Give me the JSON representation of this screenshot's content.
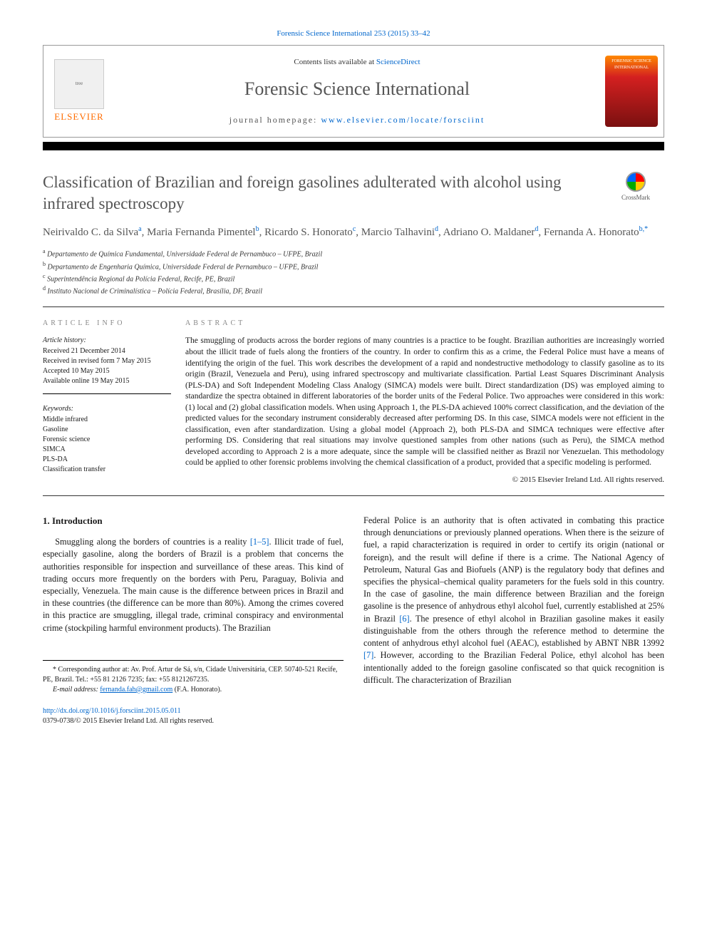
{
  "header": {
    "citation": "Forensic Science International 253 (2015) 33–42",
    "contents_prefix": "Contents lists available at ",
    "contents_link": "ScienceDirect",
    "journal_name": "Forensic Science International",
    "homepage_prefix": "journal homepage: ",
    "homepage_link": "www.elsevier.com/locate/forsciint",
    "publisher": "ELSEVIER",
    "cover_label": "FORENSIC SCIENCE INTERNATIONAL"
  },
  "crossmark": {
    "label": "CrossMark"
  },
  "article": {
    "title": "Classification of Brazilian and foreign gasolines adulterated with alcohol using infrared spectroscopy",
    "authors_html": "Neirivaldo C. da Silva<sup>a</sup>, Maria Fernanda Pimentel<sup>b</sup>, Ricardo S. Honorato<sup>c</sup>, Marcio Talhavini<sup>d</sup>, Adriano O. Maldaner<sup>d</sup>, Fernanda A. Honorato<sup>b,*</sup>",
    "affiliations": [
      {
        "sup": "a",
        "text": "Departamento de Química Fundamental, Universidade Federal de Pernambuco – UFPE, Brazil"
      },
      {
        "sup": "b",
        "text": "Departamento de Engenharia Química, Universidade Federal de Pernambuco – UFPE, Brazil"
      },
      {
        "sup": "c",
        "text": "Superintendência Regional da Polícia Federal, Recife, PE, Brazil"
      },
      {
        "sup": "d",
        "text": "Instituto Nacional de Criminalística – Polícia Federal, Brasília, DF, Brazil"
      }
    ]
  },
  "info": {
    "heading": "ARTICLE INFO",
    "history_label": "Article history:",
    "history": [
      "Received 21 December 2014",
      "Received in revised form 7 May 2015",
      "Accepted 10 May 2015",
      "Available online 19 May 2015"
    ],
    "keywords_label": "Keywords:",
    "keywords": [
      "Middle infrared",
      "Gasoline",
      "Forensic science",
      "SIMCA",
      "PLS-DA",
      "Classification transfer"
    ]
  },
  "abstract": {
    "heading": "ABSTRACT",
    "text": "The smuggling of products across the border regions of many countries is a practice to be fought. Brazilian authorities are increasingly worried about the illicit trade of fuels along the frontiers of the country. In order to confirm this as a crime, the Federal Police must have a means of identifying the origin of the fuel. This work describes the development of a rapid and nondestructive methodology to classify gasoline as to its origin (Brazil, Venezuela and Peru), using infrared spectroscopy and multivariate classification. Partial Least Squares Discriminant Analysis (PLS-DA) and Soft Independent Modeling Class Analogy (SIMCA) models were built. Direct standardization (DS) was employed aiming to standardize the spectra obtained in different laboratories of the border units of the Federal Police. Two approaches were considered in this work: (1) local and (2) global classification models. When using Approach 1, the PLS-DA achieved 100% correct classification, and the deviation of the predicted values for the secondary instrument considerably decreased after performing DS. In this case, SIMCA models were not efficient in the classification, even after standardization. Using a global model (Approach 2), both PLS-DA and SIMCA techniques were effective after performing DS. Considering that real situations may involve questioned samples from other nations (such as Peru), the SIMCA method developed according to Approach 2 is a more adequate, since the sample will be classified neither as Brazil nor Venezuelan. This methodology could be applied to other forensic problems involving the chemical classification of a product, provided that a specific modeling is performed.",
    "copyright": "© 2015 Elsevier Ireland Ltd. All rights reserved."
  },
  "body": {
    "section_heading": "1. Introduction",
    "col1_para1_pre": "Smuggling along the borders of countries is a reality ",
    "col1_ref1": "[1–5]",
    "col1_para1_post": ". Illicit trade of fuel, especially gasoline, along the borders of Brazil is a problem that concerns the authorities responsible for inspection and surveillance of these areas. This kind of trading occurs more frequently on the borders with Peru, Paraguay, Bolivia and especially, Venezuela. The main cause is the difference between prices in Brazil and in these countries (the difference can be more than 80%). Among the crimes covered in this practice are smuggling, illegal trade, criminal conspiracy and environmental crime (stockpiling harmful environment products). The Brazilian",
    "col2_para_pre": "Federal Police is an authority that is often activated in combating this practice through denunciations or previously planned operations. When there is the seizure of fuel, a rapid characterization is required in order to certify its origin (national or foreign), and the result will define if there is a crime. The National Agency of Petroleum, Natural Gas and Biofuels (ANP) is the regulatory body that defines and specifies the physical–chemical quality parameters for the fuels sold in this country. In the case of gasoline, the main difference between Brazilian and the foreign gasoline is the presence of anhydrous ethyl alcohol fuel, currently established at 25% in Brazil ",
    "col2_ref6": "[6]",
    "col2_para_mid": ". The presence of ethyl alcohol in Brazilian gasoline makes it easily distinguishable from the others through the reference method to determine the content of anhydrous ethyl alcohol fuel (AEAC), established by ABNT NBR 13992 ",
    "col2_ref7": "[7]",
    "col2_para_post": ". However, according to the Brazilian Federal Police, ethyl alcohol has been intentionally added to the foreign gasoline confiscated so that quick recognition is difficult. The characterization of Brazilian"
  },
  "footnote": {
    "corr": "* Corresponding author at: Av. Prof. Artur de Sá, s/n, Cidade Universitária, CEP. 50740-521 Recife, PE, Brazil. Tel.: +55 81 2126 7235; fax: +55 8121267235.",
    "email_label": "E-mail address: ",
    "email": "fernanda.fah@gmail.com",
    "email_paren": " (F.A. Honorato)."
  },
  "footer": {
    "doi": "http://dx.doi.org/10.1016/j.forsciint.2015.05.011",
    "issn_line": "0379-0738/© 2015 Elsevier Ireland Ltd. All rights reserved."
  },
  "colors": {
    "link": "#0066cc",
    "title_gray": "#555555",
    "elsevier_orange": "#FF6C00"
  }
}
